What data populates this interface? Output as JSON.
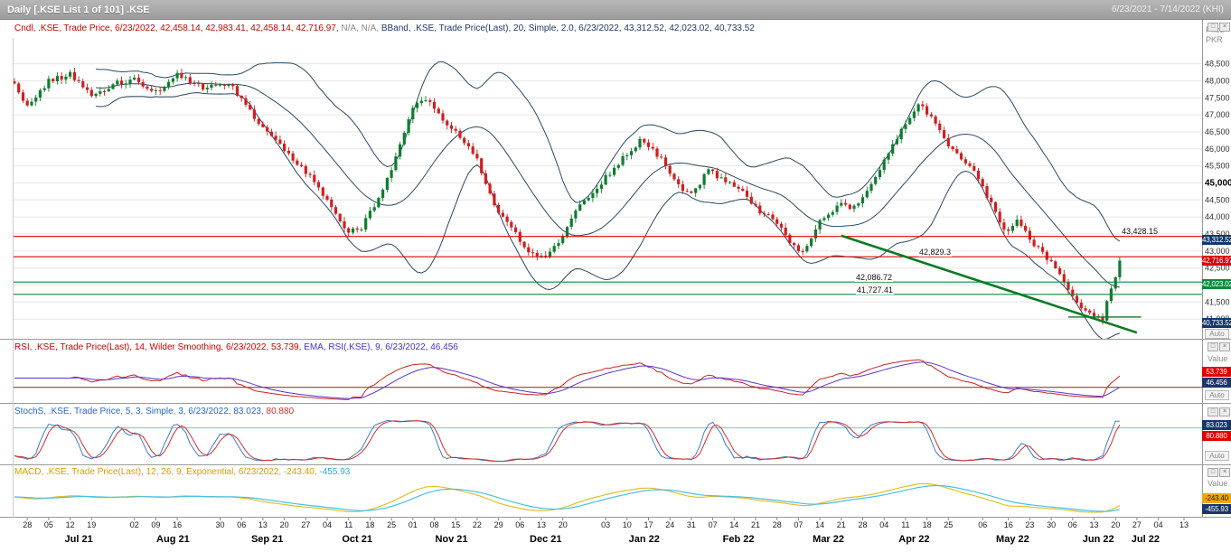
{
  "title_bar": {
    "title": "Daily [.KSE List 1 of 101] .KSE",
    "date_range": "6/23/2021 - 7/14/2022 (KHI)"
  },
  "icons": {
    "restore": "□",
    "close": "×"
  },
  "main": {
    "legend": {
      "candle": "Cndl, .KSE, Trade Price, 6/23/2022, 42,458.14, 42,983.41, 42,458.14, 42,716.97,",
      "na": " N/A, N/A,",
      "bband": " BBand, .KSE, Trade Price(Last), 20, Simple, 2.0, 6/23/2022, 43,312.52, 42,023.02, 40,733.52"
    },
    "axis": {
      "unit_line1": "Price",
      "unit_line2": "PKR",
      "auto": "Auto",
      "bold_value": 45000,
      "ticks": [
        {
          "label": "48,500",
          "v": 48500
        },
        {
          "label": "48,000",
          "v": 48000
        },
        {
          "label": "47,500",
          "v": 47500
        },
        {
          "label": "47,000",
          "v": 47000
        },
        {
          "label": "46,500",
          "v": 46500
        },
        {
          "label": "46,000",
          "v": 46000
        },
        {
          "label": "45,500",
          "v": 45500
        },
        {
          "label": "45,000",
          "v": 45000
        },
        {
          "label": "44,500",
          "v": 44500
        },
        {
          "label": "44,000",
          "v": 44000
        },
        {
          "label": "43,500",
          "v": 43500
        },
        {
          "label": "43,000",
          "v": 43000
        },
        {
          "label": "42,500",
          "v": 42500
        },
        {
          "label": "42,000",
          "v": 42000
        },
        {
          "label": "41,500",
          "v": 41500
        },
        {
          "label": "41,000",
          "v": 41000
        }
      ],
      "price_boxes": [
        {
          "label": "43,312.52",
          "v": 43312.52,
          "bg": "#17366b"
        },
        {
          "label": "42,716.97",
          "v": 42716.97,
          "bg": "#e00000"
        },
        {
          "label": "42,023.02",
          "v": 42023.02,
          "bg": "#0d8a3c"
        },
        {
          "label": "40,733.52",
          "v": 40733.52,
          "bg": "#17366b"
        }
      ]
    },
    "levels": [
      {
        "label": "43,428.15",
        "v": 43428.15,
        "color": "#e00000"
      },
      {
        "label": "42,829.3",
        "v": 42829.3,
        "color": "#e00000"
      },
      {
        "label": "42,086.72",
        "v": 42086.72,
        "color": "#0d8a3c"
      },
      {
        "label": "41,727.41",
        "v": 41727.41,
        "color": "#0d8a3c"
      }
    ]
  },
  "rsi": {
    "legend_rsi": "RSI, .KSE, Trade Price(Last), 14, Wilder Smoothing, 6/23/2022, 53.739,",
    "legend_ema": " EMA, RSI(.KSE), 9, 6/23/2022, 46.456",
    "axis_label": "Value",
    "auto": "Auto",
    "ref_value": 30,
    "boxes": [
      {
        "label": "53.739",
        "bg": "#e00000"
      },
      {
        "label": "46.456",
        "bg": "#17366b"
      }
    ]
  },
  "stoch": {
    "legend": "StochS, .KSE, Trade Price, 5, 3, Simple, 3, 6/23/2022,",
    "k_label": " 83.023,",
    "d_label": " 80.880",
    "auto": "Auto",
    "ref_value": 80,
    "boxes": [
      {
        "label": "83.023",
        "bg": "#17366b"
      },
      {
        "label": "80.880",
        "bg": "#e00000"
      }
    ]
  },
  "macd": {
    "legend": "MACD, .KSE, Trade Price(Last), 12, 26, 9, Exponential, 6/23/2022,",
    "v1_label": " -243.40,",
    "v2_label": " -455.93",
    "axis_label": "Value",
    "boxes": [
      {
        "label": "-243.40",
        "bg": "#f0a800"
      },
      {
        "label": "-455.93",
        "bg": "#17366b"
      }
    ]
  },
  "xaxis": {
    "day_ticks": [
      {
        "t": "28",
        "i": 3
      },
      {
        "t": "05",
        "i": 8
      },
      {
        "t": "12",
        "i": 13
      },
      {
        "t": "19",
        "i": 18
      },
      {
        "t": "02",
        "i": 28
      },
      {
        "t": "09",
        "i": 33
      },
      {
        "t": "16",
        "i": 38
      },
      {
        "t": "30",
        "i": 48
      },
      {
        "t": "06",
        "i": 53
      },
      {
        "t": "13",
        "i": 58
      },
      {
        "t": "20",
        "i": 63
      },
      {
        "t": "27",
        "i": 68
      },
      {
        "t": "04",
        "i": 73
      },
      {
        "t": "11",
        "i": 78
      },
      {
        "t": "18",
        "i": 83
      },
      {
        "t": "25",
        "i": 88
      },
      {
        "t": "01",
        "i": 93
      },
      {
        "t": "08",
        "i": 98
      },
      {
        "t": "15",
        "i": 103
      },
      {
        "t": "22",
        "i": 108
      },
      {
        "t": "29",
        "i": 113
      },
      {
        "t": "06",
        "i": 118
      },
      {
        "t": "13",
        "i": 123
      },
      {
        "t": "20",
        "i": 128
      },
      {
        "t": "03",
        "i": 138
      },
      {
        "t": "10",
        "i": 143
      },
      {
        "t": "17",
        "i": 148
      },
      {
        "t": "24",
        "i": 153
      },
      {
        "t": "31",
        "i": 158
      },
      {
        "t": "07",
        "i": 163
      },
      {
        "t": "14",
        "i": 168
      },
      {
        "t": "21",
        "i": 173
      },
      {
        "t": "28",
        "i": 178
      },
      {
        "t": "07",
        "i": 183
      },
      {
        "t": "14",
        "i": 188
      },
      {
        "t": "21",
        "i": 193
      },
      {
        "t": "28",
        "i": 198
      },
      {
        "t": "04",
        "i": 203
      },
      {
        "t": "11",
        "i": 208
      },
      {
        "t": "18",
        "i": 213
      },
      {
        "t": "25",
        "i": 218
      },
      {
        "t": "06",
        "i": 226
      },
      {
        "t": "16",
        "i": 232
      },
      {
        "t": "23",
        "i": 237
      },
      {
        "t": "30",
        "i": 242
      },
      {
        "t": "06",
        "i": 247
      },
      {
        "t": "13",
        "i": 252
      },
      {
        "t": "20",
        "i": 257
      },
      {
        "t": "27",
        "i": 262
      },
      {
        "t": "04",
        "i": 267
      },
      {
        "t": "13",
        "i": 273
      }
    ],
    "months": [
      {
        "t": "Jul 21",
        "i": 15
      },
      {
        "t": "Aug 21",
        "i": 37
      },
      {
        "t": "Sep 21",
        "i": 59
      },
      {
        "t": "Oct 21",
        "i": 80
      },
      {
        "t": "Nov 21",
        "i": 102
      },
      {
        "t": "Dec 21",
        "i": 124
      },
      {
        "t": "Jan 22",
        "i": 147
      },
      {
        "t": "Feb 22",
        "i": 169
      },
      {
        "t": "Mar 22",
        "i": 190
      },
      {
        "t": "Apr 22",
        "i": 210
      },
      {
        "t": "May 22",
        "i": 233
      },
      {
        "t": "Jun 22",
        "i": 253
      },
      {
        "t": "Jul 22",
        "i": 264
      }
    ]
  },
  "chart_data": {
    "type": "candlestick",
    "symbol": ".KSE",
    "interval": "Daily",
    "visible_range": "6/23/2021 - 7/14/2022",
    "price_axis": {
      "min": 41000,
      "max": 48500,
      "step": 500,
      "unit": "PKR"
    },
    "last_candle": {
      "date": "6/23/2022",
      "open": 42458.14,
      "high": 42983.41,
      "low": 42458.14,
      "close": 42716.97
    },
    "indicators": {
      "bband": {
        "params": "20, Simple, 2.0",
        "upper": 43312.52,
        "middle": 42023.02,
        "lower": 40733.52
      },
      "rsi": {
        "params": "14, Wilder Smoothing",
        "value": 53.739,
        "ema_period": 9,
        "ema_value": 46.456
      },
      "stochs": {
        "params": "5, 3, Simple, 3",
        "k": 83.023,
        "d": 80.88
      },
      "macd": {
        "params": "12, 26, 9, Exponential",
        "macd": -243.4,
        "signal": -455.93
      }
    },
    "levels": [
      43428.15,
      42829.3,
      42086.72,
      41727.41
    ],
    "num_candles": 259,
    "close_anchors": [
      [
        0,
        47900
      ],
      [
        3,
        47250
      ],
      [
        8,
        48000
      ],
      [
        13,
        48200
      ],
      [
        18,
        47550
      ],
      [
        23,
        47900
      ],
      [
        28,
        48050
      ],
      [
        33,
        47650
      ],
      [
        38,
        48150
      ],
      [
        44,
        47800
      ],
      [
        50,
        47950
      ],
      [
        55,
        47100
      ],
      [
        60,
        46350
      ],
      [
        65,
        45650
      ],
      [
        70,
        45050
      ],
      [
        74,
        44250
      ],
      [
        78,
        43550
      ],
      [
        81,
        43650
      ],
      [
        85,
        44600
      ],
      [
        89,
        45700
      ],
      [
        93,
        47150
      ],
      [
        96,
        47500
      ],
      [
        100,
        46850
      ],
      [
        104,
        46350
      ],
      [
        108,
        45650
      ],
      [
        112,
        44350
      ],
      [
        116,
        43650
      ],
      [
        120,
        42950
      ],
      [
        124,
        42800
      ],
      [
        128,
        43450
      ],
      [
        132,
        44350
      ],
      [
        135,
        44750
      ],
      [
        140,
        45450
      ],
      [
        146,
        46250
      ],
      [
        150,
        45850
      ],
      [
        155,
        44950
      ],
      [
        158,
        44650
      ],
      [
        162,
        45350
      ],
      [
        166,
        45050
      ],
      [
        170,
        44750
      ],
      [
        174,
        44150
      ],
      [
        177,
        43950
      ],
      [
        181,
        43250
      ],
      [
        184,
        42950
      ],
      [
        188,
        43850
      ],
      [
        192,
        44350
      ],
      [
        196,
        44250
      ],
      [
        200,
        44950
      ],
      [
        204,
        45850
      ],
      [
        208,
        46750
      ],
      [
        211,
        47350
      ],
      [
        214,
        46950
      ],
      [
        217,
        46250
      ],
      [
        220,
        45850
      ],
      [
        224,
        45350
      ],
      [
        228,
        44350
      ],
      [
        231,
        43550
      ],
      [
        234,
        43850
      ],
      [
        237,
        43350
      ],
      [
        240,
        42950
      ],
      [
        243,
        42450
      ],
      [
        246,
        41850
      ],
      [
        249,
        41350
      ],
      [
        252,
        41050
      ],
      [
        254,
        41000
      ],
      [
        256,
        41900
      ],
      [
        258,
        42717
      ]
    ],
    "trendline": {
      "i1": 193,
      "v1": 43450,
      "i2": 262,
      "v2": 40600
    },
    "support_segment": {
      "i1": 246,
      "i2": 263,
      "v": 41060
    }
  }
}
